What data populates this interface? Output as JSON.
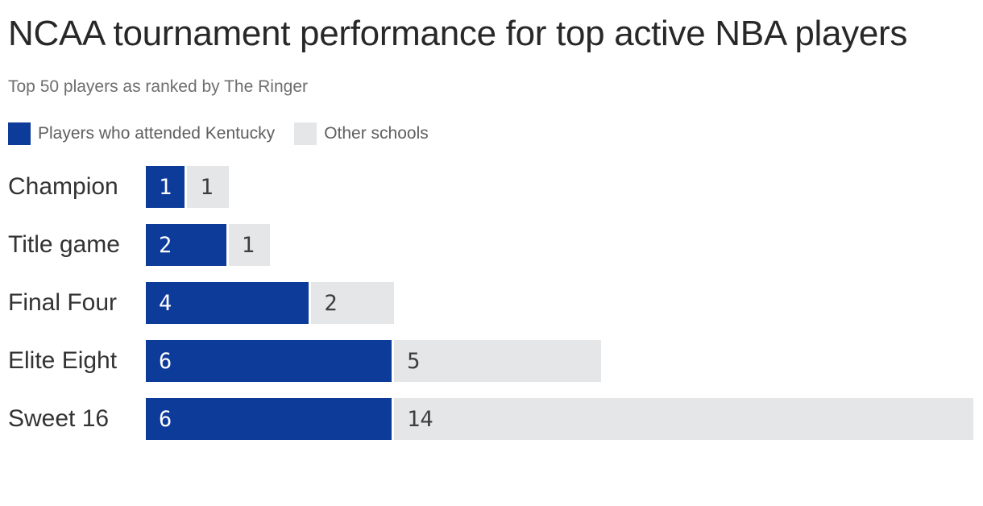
{
  "header": {
    "title": "NCAA tournament performance for top active NBA players",
    "subtitle": "Top 50 players as ranked by The Ringer"
  },
  "legend": {
    "items": [
      {
        "label": "Players who attended Kentucky",
        "color": "#0d3b9a"
      },
      {
        "label": "Other schools",
        "color": "#e5e6e7"
      }
    ]
  },
  "chart_data": {
    "type": "bar",
    "orientation": "horizontal",
    "stacked": true,
    "title": "NCAA tournament performance for top active NBA players",
    "subtitle": "Top 50 players as ranked by The Ringer",
    "categories": [
      "Champion",
      "Title game",
      "Final Four",
      "Elite Eight",
      "Sweet 16"
    ],
    "series": [
      {
        "name": "Players who attended Kentucky",
        "color": "#0d3b9a",
        "label_color": "#ffffff",
        "values": [
          1,
          2,
          4,
          6,
          6
        ]
      },
      {
        "name": "Other schools",
        "color": "#e5e6e7",
        "label_color": "#3d3d3d",
        "values": [
          1,
          1,
          2,
          5,
          14
        ]
      }
    ],
    "xlim": [
      0,
      20
    ],
    "grid": false,
    "value_labels": "inside-left",
    "legend_position": "top-left"
  }
}
